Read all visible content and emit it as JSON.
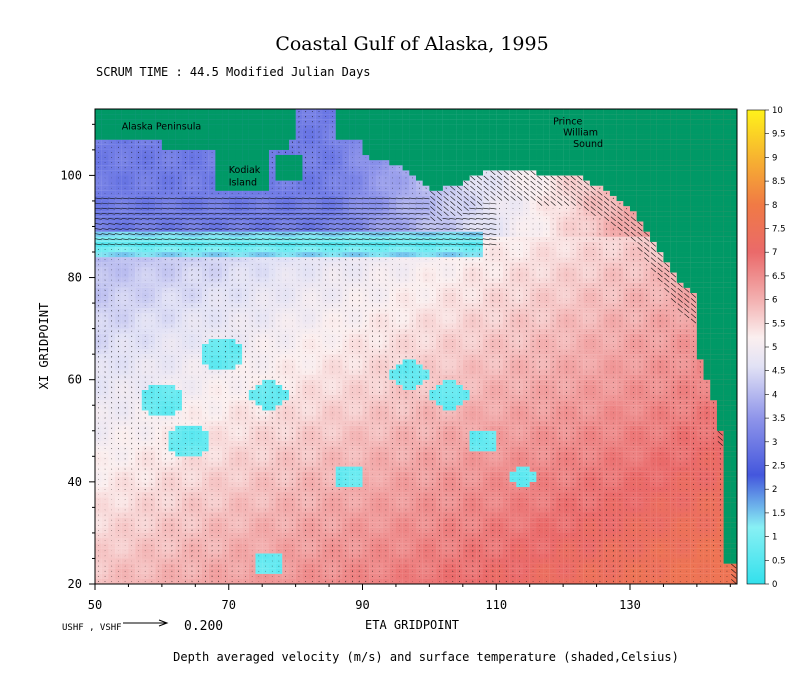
{
  "chart_data": {
    "type": "heatmap",
    "title": "Coastal Gulf of Alaska, 1995",
    "subtitle": "SCRUM TIME : 44.5 Modified Julian Days",
    "xlabel": "ETA GRIDPOINT",
    "ylabel": "XI GRIDPOINT",
    "caption": "Depth averaged velocity (m/s) and surface temperature (shaded,Celsius)",
    "xlim": [
      50,
      146
    ],
    "ylim": [
      20,
      113
    ],
    "x_ticks": [
      50,
      70,
      90,
      110,
      130
    ],
    "y_ticks": [
      20,
      40,
      60,
      80,
      100
    ],
    "colorbar": {
      "min": 0,
      "max": 10,
      "ticks": [
        "0",
        "0.5",
        "1",
        "1.5",
        "2",
        "2.5",
        "3",
        "3.5",
        "4",
        "4.5",
        "5",
        "5.5",
        "6",
        "6.5",
        "7",
        "7.5",
        "8",
        "8.5",
        "9",
        "9.5",
        "10"
      ],
      "stops": [
        {
          "v": 0,
          "color": "#33e0ec"
        },
        {
          "v": 1.2,
          "color": "#88f0f4"
        },
        {
          "v": 2.3,
          "color": "#4457dd"
        },
        {
          "v": 3.5,
          "color": "#8f95ea"
        },
        {
          "v": 4.6,
          "color": "#e2e2f5"
        },
        {
          "v": 5.2,
          "color": "#fbefef"
        },
        {
          "v": 6.0,
          "color": "#f3b0b0"
        },
        {
          "v": 7.0,
          "color": "#ea6a6a"
        },
        {
          "v": 8.0,
          "color": "#f07a45"
        },
        {
          "v": 9.0,
          "color": "#f7b430"
        },
        {
          "v": 10.0,
          "color": "#fff21a"
        }
      ]
    },
    "land_color": "#009966",
    "vector_reference": {
      "label": "USHF , VSHF",
      "value": "0.200"
    },
    "annotations": [
      {
        "text": "Alaska Peninsula",
        "x": 54,
        "y": 109
      },
      {
        "text": "Kodiak",
        "x": 70,
        "y": 100.5
      },
      {
        "text": "Island",
        "x": 70,
        "y": 98
      },
      {
        "text": "Prince",
        "x": 118.5,
        "y": 110
      },
      {
        "text": "William",
        "x": 120,
        "y": 107.8
      },
      {
        "text": "Sound",
        "x": 121.5,
        "y": 105.6
      }
    ]
  }
}
